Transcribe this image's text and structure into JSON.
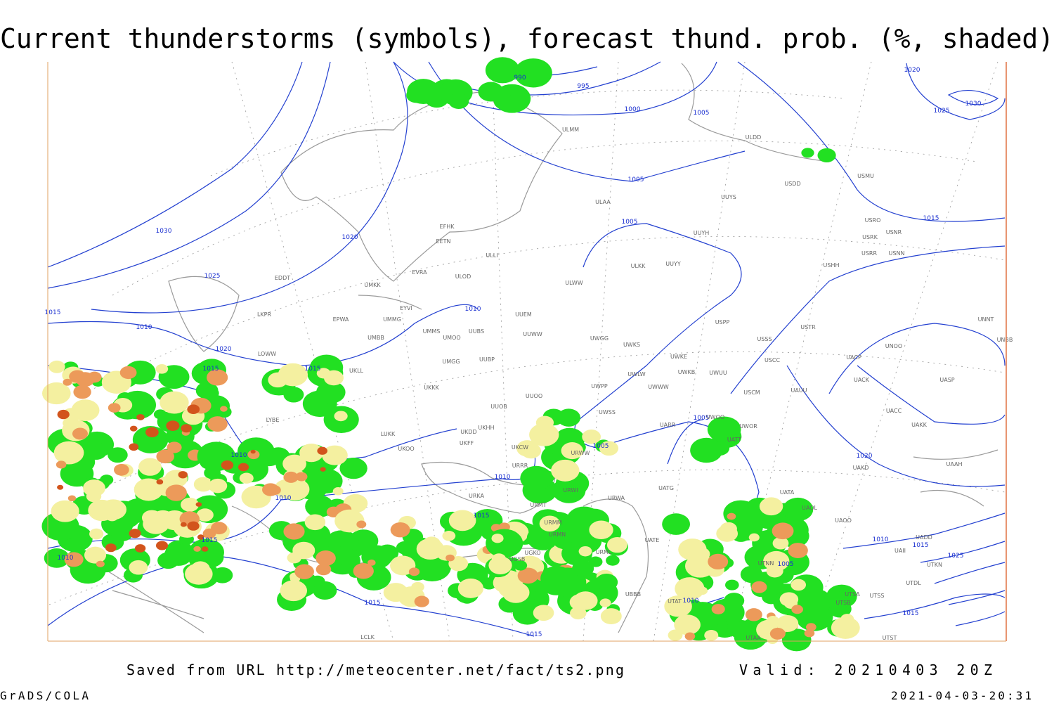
{
  "header": {
    "title": "Current thunderstorms (symbols), forecast thund. prob. (%, shaded)"
  },
  "footer": {
    "source": "Saved from URL http://meteocenter.net/fact/ts2.png",
    "valid": "Valid: 20210403 20Z",
    "software": "GrADS/COLA",
    "timestamp": "2021-04-03-20:31"
  },
  "isobar_labels": [
    "990",
    "995",
    "1000",
    "1005",
    "1005",
    "1005",
    "1020",
    "1025",
    "1030",
    "1030",
    "1020",
    "1025",
    "1010",
    "1020",
    "1015",
    "1015",
    "1010",
    "1010",
    "1010",
    "1010",
    "1015",
    "1005",
    "1005",
    "1015",
    "1020",
    "1010",
    "1015",
    "1025",
    "1005",
    "1015",
    "1010",
    "1015",
    "1010",
    "1015",
    "1015",
    "1015"
  ],
  "stations": [
    "ULMM",
    "ULDD",
    "USDD",
    "USMU",
    "ULAA",
    "UUYS",
    "EFHK",
    "EETN",
    "UUYH",
    "USRO",
    "USRK",
    "USNR",
    "USRR",
    "USNN",
    "USHH",
    "ULLI",
    "EVRA",
    "ULOD",
    "ULKK",
    "UUYY",
    "EDDT",
    "UMKK",
    "ULWW",
    "EYVI",
    "UUEM",
    "EPWA",
    "UMMG",
    "LKPR",
    "USPP",
    "USTR",
    "UNNT",
    "UMMS",
    "UMOO",
    "UUBS",
    "UUWW",
    "UMBB",
    "UWGG",
    "USSS",
    "UNBB",
    "LOWW",
    "UWKS",
    "UNOO",
    "UWKE",
    "UMGG",
    "UUBP",
    "UKLL",
    "UACP",
    "USCC",
    "UWKB",
    "UWUU",
    "UACK",
    "UASP",
    "UKKK",
    "UWLW",
    "UUOO",
    "UWPP",
    "UWWW",
    "USCM",
    "UAUU",
    "UUOB",
    "UWSS",
    "UACC",
    "LYBE",
    "UKHH",
    "UKDD",
    "UARR",
    "UWOO",
    "UWOR",
    "UAKK",
    "LUKK",
    "UKOO",
    "UKFF",
    "UKCW",
    "URWW",
    "URRR",
    "UATT",
    "UAKD",
    "UAAH",
    "URWI",
    "URKA",
    "URWA",
    "UATG",
    "UATA",
    "URMT",
    "UAOL",
    "UAOO",
    "URMM",
    "UATE",
    "UAII",
    "UADD",
    "URMN",
    "UGKO",
    "URML",
    "UGSB",
    "UTNN",
    "UTKN",
    "UTDL",
    "UTSA",
    "UTSS",
    "UBBB",
    "UTAT",
    "UTSB",
    "UTAA",
    "UTST",
    "LCLK"
  ]
}
